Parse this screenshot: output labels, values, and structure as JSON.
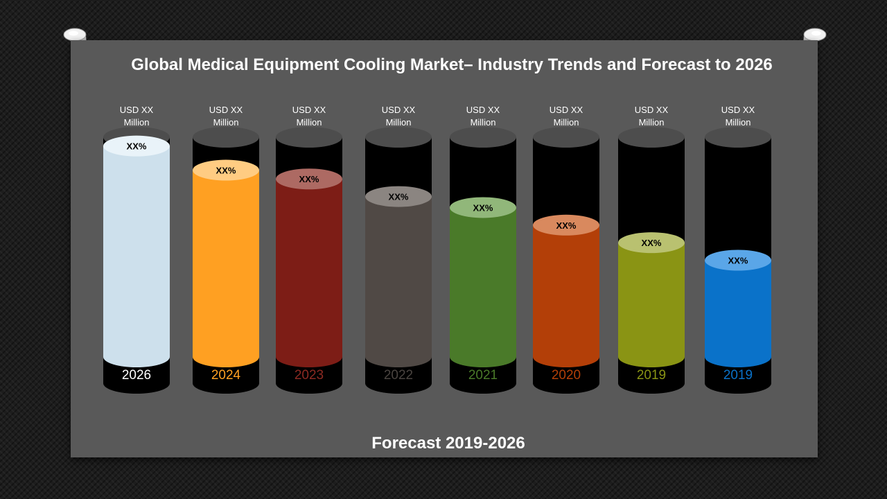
{
  "chart_data": {
    "type": "bar",
    "title": "Global Medical Equipment Cooling Market– Industry Trends and Forecast to 2026",
    "xlabel": "Forecast 2019-2026",
    "ylabel": "",
    "categories": [
      "2026",
      "2024",
      "2023",
      "2022",
      "2021",
      "2020",
      "2019",
      "2019"
    ],
    "values": [
      0.96,
      0.85,
      0.81,
      0.73,
      0.68,
      0.6,
      0.52,
      0.44
    ],
    "value_unit": "relative cylinder fill (no numeric axis shown)",
    "value_labels": [
      "USD  XX\nMillion",
      "USD  XX\nMillion",
      "USD  XX\nMillion",
      "USD XX\nMillion",
      "USD  XX\nMillion",
      "USD  XX\nMillion",
      "USD  XX\nMillion",
      "USD  XX\nMillion"
    ],
    "percent_labels": [
      "XX%",
      "XX%",
      "XX%",
      "XX%",
      "XX%",
      "XX%",
      "XX%",
      "XX%"
    ],
    "colors": [
      "#cde0ec",
      "#ffa022",
      "#7d1d16",
      "#504945",
      "#4a7a29",
      "#b33f08",
      "#8a9414",
      "#0a72c9"
    ],
    "cap_colors": [
      "#e9f3f9",
      "#ffcc82",
      "#ad6a63",
      "#8b8581",
      "#91b77a",
      "#d9895e",
      "#b9c170",
      "#5aa6e8"
    ],
    "year_label_colors": [
      "#ffffff",
      "#ffa022",
      "#8c2a22",
      "#4a4440",
      "#4a7a29",
      "#b33f08",
      "#8a9414",
      "#0a72c9"
    ],
    "legend": "none",
    "grid": false
  }
}
